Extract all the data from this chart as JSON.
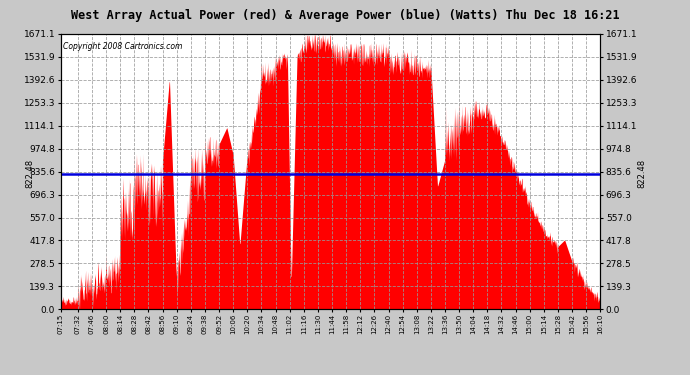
{
  "title": "West Array Actual Power (red) & Average Power (blue) (Watts) Thu Dec 18 16:21",
  "copyright": "Copyright 2008 Cartronics.com",
  "average_power": 822.48,
  "y_max": 1671.1,
  "y_min": 0.0,
  "yticks": [
    0.0,
    139.3,
    278.5,
    417.8,
    557.0,
    696.3,
    835.6,
    974.8,
    1114.1,
    1253.3,
    1392.6,
    1531.9,
    1671.1
  ],
  "bg_color": "#c8c8c8",
  "plot_bg_color": "#ffffff",
  "fill_color": "#ff0000",
  "line_color": "#0000dd",
  "grid_color": "#999999",
  "title_color": "#000000",
  "xtick_labels": [
    "07:15",
    "07:32",
    "07:46",
    "08:00",
    "08:14",
    "08:28",
    "08:42",
    "08:56",
    "09:10",
    "09:24",
    "09:38",
    "09:52",
    "10:06",
    "10:20",
    "10:34",
    "10:48",
    "11:02",
    "11:16",
    "11:30",
    "11:44",
    "11:58",
    "12:12",
    "12:26",
    "12:40",
    "12:54",
    "13:08",
    "13:22",
    "13:36",
    "13:50",
    "14:04",
    "14:18",
    "14:32",
    "14:46",
    "15:00",
    "15:14",
    "15:28",
    "15:42",
    "15:56",
    "16:10"
  ]
}
